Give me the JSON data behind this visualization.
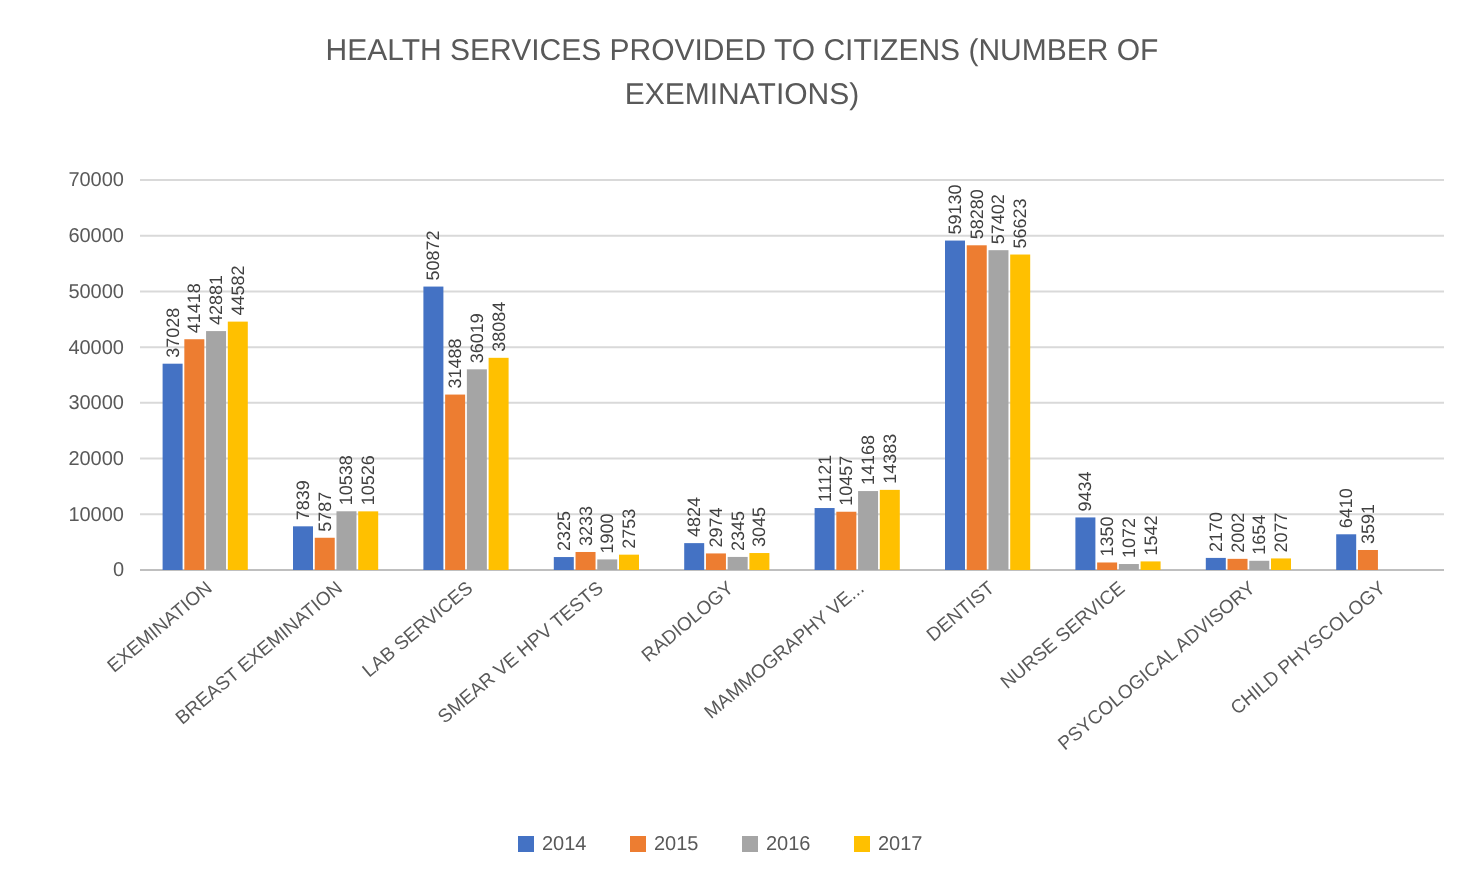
{
  "chart_data": {
    "type": "bar",
    "title": "HEALTH SERVICES PROVIDED TO CITIZENS (NUMBER OF EXEMINATIONS)",
    "categories": [
      "EXEMINATION",
      "BREAST EXEMINATION",
      "LAB SERVICES",
      "SMEAR VE HPV TESTS",
      "RADIOLOGY",
      "MAMMOGRAPHY VE...",
      "DENTIST",
      "NURSE SERVICE",
      "PSYCOLOGICAL ADVISORY",
      "CHILD PHYSCOLOGY"
    ],
    "series": [
      {
        "name": "2014",
        "color": "#4472c4",
        "values": [
          37028,
          7839,
          50872,
          2325,
          4824,
          11121,
          59130,
          9434,
          2170,
          6410
        ]
      },
      {
        "name": "2015",
        "color": "#ed7d31",
        "values": [
          41418,
          5787,
          31488,
          3233,
          2974,
          10457,
          58280,
          1350,
          2002,
          3591
        ]
      },
      {
        "name": "2016",
        "color": "#a5a5a5",
        "values": [
          42881,
          10538,
          36019,
          1900,
          2345,
          14168,
          57402,
          1072,
          1654,
          null
        ]
      },
      {
        "name": "2017",
        "color": "#ffc000",
        "values": [
          44582,
          10526,
          38084,
          2753,
          3045,
          14383,
          56623,
          1542,
          2077,
          null
        ]
      }
    ],
    "ylim": [
      0,
      70000
    ],
    "yticks": [
      0,
      10000,
      20000,
      30000,
      40000,
      50000,
      60000,
      70000
    ],
    "grid": "y",
    "legend": "bottom",
    "data_labels": true
  }
}
